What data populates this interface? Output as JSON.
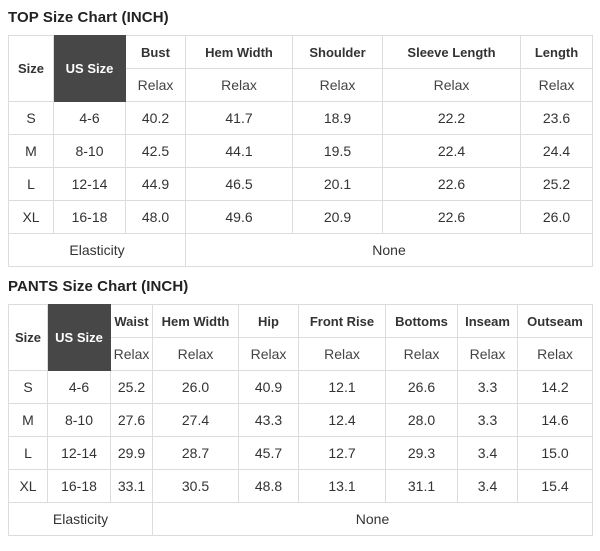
{
  "colors": {
    "highlight_header_bg": "#474747",
    "highlight_header_text": "#ffffff",
    "border": "#dcdcdc",
    "text": "#333333"
  },
  "top_chart": {
    "title": "TOP Size Chart (INCH)",
    "corner_header": "Size",
    "highlight_header": "US Size",
    "fit_label": "Relax",
    "measure_headers": [
      "Bust",
      "Hem Width",
      "Shoulder",
      "Sleeve Length",
      "Length"
    ],
    "rows": [
      {
        "size": "S",
        "us_size": "4-6",
        "values": [
          "40.2",
          "41.7",
          "18.9",
          "22.2",
          "23.6"
        ]
      },
      {
        "size": "M",
        "us_size": "8-10",
        "values": [
          "42.5",
          "44.1",
          "19.5",
          "22.4",
          "24.4"
        ]
      },
      {
        "size": "L",
        "us_size": "12-14",
        "values": [
          "44.9",
          "46.5",
          "20.1",
          "22.6",
          "25.2"
        ]
      },
      {
        "size": "XL",
        "us_size": "16-18",
        "values": [
          "48.0",
          "49.6",
          "20.9",
          "22.6",
          "26.0"
        ]
      }
    ],
    "footer": {
      "label": "Elasticity",
      "value": "None"
    }
  },
  "pants_chart": {
    "title": "PANTS Size Chart (INCH)",
    "corner_header": "Size",
    "highlight_header": "US Size",
    "fit_label": "Relax",
    "measure_headers": [
      "Waist",
      "Hem Width",
      "Hip",
      "Front Rise",
      "Bottoms",
      "Inseam",
      "Outseam"
    ],
    "rows": [
      {
        "size": "S",
        "us_size": "4-6",
        "values": [
          "25.2",
          "26.0",
          "40.9",
          "12.1",
          "26.6",
          "3.3",
          "14.2"
        ]
      },
      {
        "size": "M",
        "us_size": "8-10",
        "values": [
          "27.6",
          "27.4",
          "43.3",
          "12.4",
          "28.0",
          "3.3",
          "14.6"
        ]
      },
      {
        "size": "L",
        "us_size": "12-14",
        "values": [
          "29.9",
          "28.7",
          "45.7",
          "12.7",
          "29.3",
          "3.4",
          "15.0"
        ]
      },
      {
        "size": "XL",
        "us_size": "16-18",
        "values": [
          "33.1",
          "30.5",
          "48.8",
          "13.1",
          "31.1",
          "3.4",
          "15.4"
        ]
      }
    ],
    "footer": {
      "label": "Elasticity",
      "value": "None"
    }
  }
}
